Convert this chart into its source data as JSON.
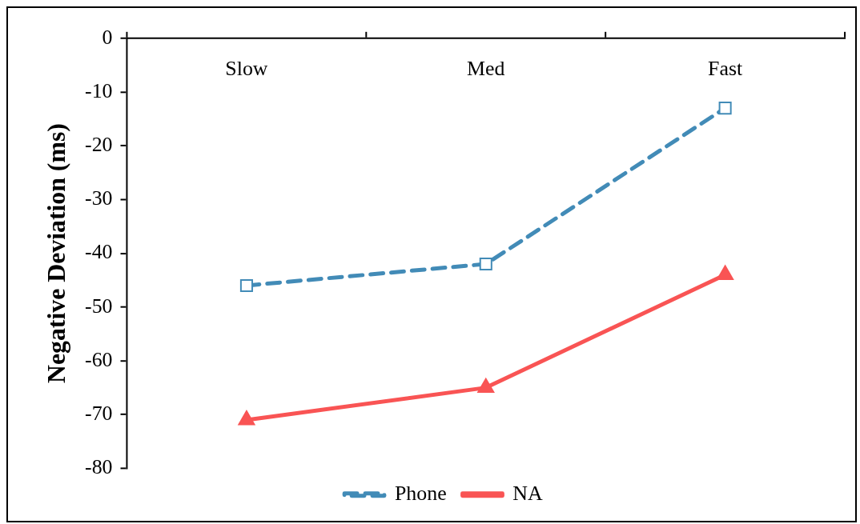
{
  "chart_data": {
    "type": "line",
    "ylabel": "Negative Deviation (ms)",
    "categories": [
      "Slow",
      "Med",
      "Fast"
    ],
    "series": [
      {
        "name": "Phone",
        "color": "#428bb7",
        "values": [
          -46,
          -42,
          -13
        ],
        "marker": "square",
        "line_style": "dashed"
      },
      {
        "name": "NA",
        "color": "#f95454",
        "values": [
          -71,
          -65,
          -44
        ],
        "marker": "triangle",
        "line_style": "solid"
      }
    ],
    "ylim": [
      -80,
      0
    ],
    "yticks": [
      0,
      -10,
      -20,
      -30,
      -40,
      -50,
      -60,
      -70,
      -80
    ],
    "grid": false,
    "legend": "bottom"
  }
}
